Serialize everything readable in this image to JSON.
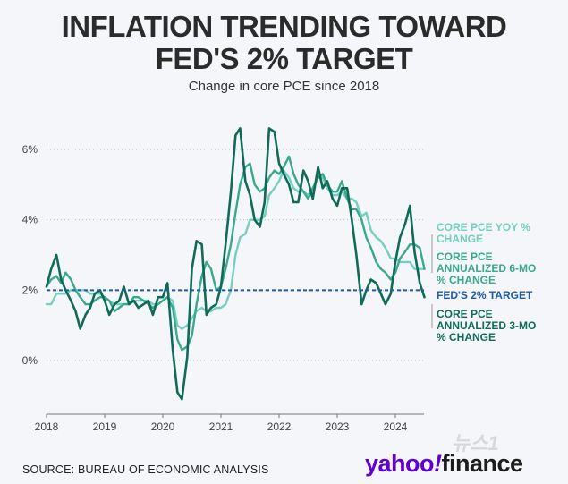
{
  "header": {
    "title_line1": "INFLATION TRENDING TOWARD",
    "title_line2": "FED'S 2% TARGET",
    "subtitle": "Change in core PCE since 2018"
  },
  "footer": {
    "source": "SOURCE: BUREAU OF ECONOMIC ANALYSIS",
    "logo_yahoo": "yahoo",
    "logo_bang": "!",
    "logo_finance": "finance",
    "watermark": "뉴스1"
  },
  "colors": {
    "yoy": "#74cfc0",
    "six_mo": "#3aa88a",
    "three_mo": "#0f6b58",
    "target": "#1f5aa6",
    "grid": "#b9bec4",
    "axis_text": "#444444"
  },
  "chart_data": {
    "type": "line",
    "title": "INFLATION TRENDING TOWARD FED'S 2% TARGET",
    "subtitle": "Change in core PCE since 2018",
    "xlabel": "",
    "ylabel": "",
    "xlim": [
      2018.0,
      2024.5
    ],
    "ylim": [
      -1.2,
      7.0
    ],
    "yticks": [
      0,
      2,
      4,
      6
    ],
    "ytick_labels": [
      "0%",
      "2%",
      "4%",
      "6%"
    ],
    "xticks": [
      2018,
      2019,
      2020,
      2021,
      2022,
      2023,
      2024
    ],
    "xtick_labels": [
      "2018",
      "2019",
      "2020",
      "2021",
      "2022",
      "2023",
      "2024"
    ],
    "grid": true,
    "target": {
      "label": "FED'S 2% TARGET",
      "value": 2
    },
    "series": [
      {
        "key": "yoy",
        "name": "CORE PCE YOY % CHANGE",
        "x": [
          2018.0,
          2018.08,
          2018.17,
          2018.25,
          2018.33,
          2018.42,
          2018.5,
          2018.58,
          2018.67,
          2018.75,
          2018.83,
          2018.92,
          2019.0,
          2019.08,
          2019.17,
          2019.25,
          2019.33,
          2019.42,
          2019.5,
          2019.58,
          2019.67,
          2019.75,
          2019.83,
          2019.92,
          2020.0,
          2020.08,
          2020.17,
          2020.25,
          2020.33,
          2020.42,
          2020.5,
          2020.58,
          2020.67,
          2020.75,
          2020.83,
          2020.92,
          2021.0,
          2021.08,
          2021.17,
          2021.25,
          2021.33,
          2021.42,
          2021.5,
          2021.58,
          2021.67,
          2021.75,
          2021.83,
          2021.92,
          2022.0,
          2022.08,
          2022.17,
          2022.25,
          2022.33,
          2022.42,
          2022.5,
          2022.58,
          2022.67,
          2022.75,
          2022.83,
          2022.92,
          2023.0,
          2023.08,
          2023.17,
          2023.25,
          2023.33,
          2023.42,
          2023.5,
          2023.58,
          2023.67,
          2023.75,
          2023.83,
          2023.92,
          2024.0,
          2024.08,
          2024.17,
          2024.25,
          2024.33,
          2024.42,
          2024.5
        ],
        "values": [
          1.6,
          1.6,
          1.9,
          1.9,
          1.9,
          2.0,
          2.0,
          2.0,
          2.0,
          1.9,
          1.9,
          1.9,
          1.8,
          1.7,
          1.6,
          1.6,
          1.6,
          1.6,
          1.7,
          1.7,
          1.7,
          1.7,
          1.6,
          1.6,
          1.7,
          1.8,
          1.7,
          1.0,
          0.9,
          1.0,
          1.2,
          1.4,
          1.5,
          1.4,
          1.4,
          1.5,
          1.5,
          1.6,
          2.0,
          3.0,
          3.5,
          3.6,
          4.0,
          4.0,
          4.0,
          4.1,
          4.7,
          4.9,
          5.1,
          5.4,
          5.2,
          4.9,
          4.8,
          4.8,
          4.7,
          4.9,
          5.2,
          5.2,
          4.9,
          4.7,
          4.7,
          4.8,
          4.6,
          4.6,
          4.5,
          4.1,
          4.2,
          3.7,
          3.5,
          3.4,
          3.2,
          2.9,
          2.9,
          2.8,
          2.8,
          2.8,
          2.6,
          2.6,
          2.6
        ]
      },
      {
        "key": "six_mo",
        "name": "CORE PCE ANNUALIZED 6-MO % CHANGE",
        "x": [
          2018.0,
          2018.08,
          2018.17,
          2018.25,
          2018.33,
          2018.42,
          2018.5,
          2018.58,
          2018.67,
          2018.75,
          2018.83,
          2018.92,
          2019.0,
          2019.08,
          2019.17,
          2019.25,
          2019.33,
          2019.42,
          2019.5,
          2019.58,
          2019.67,
          2019.75,
          2019.83,
          2019.92,
          2020.0,
          2020.08,
          2020.17,
          2020.25,
          2020.33,
          2020.42,
          2020.5,
          2020.58,
          2020.67,
          2020.75,
          2020.83,
          2020.92,
          2021.0,
          2021.08,
          2021.17,
          2021.25,
          2021.33,
          2021.42,
          2021.5,
          2021.58,
          2021.67,
          2021.75,
          2021.83,
          2021.92,
          2022.0,
          2022.08,
          2022.17,
          2022.25,
          2022.33,
          2022.42,
          2022.5,
          2022.58,
          2022.67,
          2022.75,
          2022.83,
          2022.92,
          2023.0,
          2023.08,
          2023.17,
          2023.25,
          2023.33,
          2023.42,
          2023.5,
          2023.58,
          2023.67,
          2023.75,
          2023.83,
          2023.92,
          2024.0,
          2024.08,
          2024.17,
          2024.25,
          2024.33,
          2024.42,
          2024.5
        ],
        "values": [
          2.1,
          2.3,
          2.4,
          2.2,
          2.5,
          2.3,
          2.0,
          1.8,
          1.6,
          1.6,
          1.7,
          1.8,
          1.8,
          1.7,
          1.4,
          1.5,
          1.6,
          1.6,
          1.8,
          1.8,
          1.7,
          1.6,
          1.5,
          1.6,
          1.7,
          1.8,
          1.5,
          0.6,
          0.3,
          0.4,
          0.7,
          1.6,
          2.4,
          2.8,
          2.6,
          2.0,
          2.1,
          2.6,
          3.3,
          4.2,
          5.0,
          5.5,
          5.6,
          5.0,
          4.8,
          4.9,
          5.2,
          5.4,
          5.3,
          5.5,
          5.8,
          5.3,
          5.0,
          4.8,
          4.6,
          4.9,
          5.2,
          5.3,
          5.0,
          4.8,
          4.8,
          5.1,
          4.6,
          4.3,
          4.3,
          4.0,
          3.5,
          3.2,
          2.8,
          2.6,
          2.5,
          2.3,
          2.5,
          2.9,
          3.1,
          3.3,
          3.3,
          3.2,
          2.6
        ]
      },
      {
        "key": "three_mo",
        "name": "CORE PCE ANNUALIZED 3-MO % CHANGE",
        "x": [
          2018.0,
          2018.08,
          2018.17,
          2018.25,
          2018.33,
          2018.42,
          2018.5,
          2018.58,
          2018.67,
          2018.75,
          2018.83,
          2018.92,
          2019.0,
          2019.08,
          2019.17,
          2019.25,
          2019.33,
          2019.42,
          2019.5,
          2019.58,
          2019.67,
          2019.75,
          2019.83,
          2019.92,
          2020.0,
          2020.08,
          2020.17,
          2020.25,
          2020.33,
          2020.42,
          2020.5,
          2020.58,
          2020.67,
          2020.75,
          2020.83,
          2020.92,
          2021.0,
          2021.08,
          2021.17,
          2021.25,
          2021.33,
          2021.42,
          2021.5,
          2021.58,
          2021.67,
          2021.75,
          2021.83,
          2021.92,
          2022.0,
          2022.08,
          2022.17,
          2022.25,
          2022.33,
          2022.42,
          2022.5,
          2022.58,
          2022.67,
          2022.75,
          2022.83,
          2022.92,
          2023.0,
          2023.08,
          2023.17,
          2023.25,
          2023.33,
          2023.42,
          2023.5,
          2023.58,
          2023.67,
          2023.75,
          2023.83,
          2023.92,
          2024.0,
          2024.08,
          2024.17,
          2024.25,
          2024.33,
          2024.42,
          2024.5
        ],
        "values": [
          2.1,
          2.6,
          3.0,
          2.3,
          2.0,
          1.7,
          1.4,
          0.9,
          1.3,
          1.5,
          1.9,
          2.0,
          1.7,
          1.3,
          1.6,
          1.7,
          2.1,
          1.6,
          1.7,
          1.5,
          1.6,
          1.7,
          1.3,
          1.8,
          1.8,
          2.2,
          0.3,
          -0.9,
          -1.1,
          0.1,
          2.6,
          3.4,
          3.3,
          1.3,
          1.5,
          1.6,
          2.1,
          3.3,
          4.8,
          6.4,
          6.6,
          5.1,
          4.7,
          4.0,
          3.8,
          4.5,
          6.6,
          6.5,
          5.6,
          5.3,
          5.0,
          4.5,
          4.5,
          5.4,
          5.1,
          4.6,
          5.5,
          4.9,
          5.1,
          4.6,
          4.4,
          4.9,
          4.9,
          4.0,
          3.0,
          1.6,
          2.0,
          2.3,
          2.2,
          1.9,
          1.6,
          1.9,
          2.8,
          3.5,
          3.9,
          4.4,
          3.1,
          2.2,
          1.8
        ]
      }
    ],
    "legend": [
      {
        "key": "yoy",
        "lines": [
          "CORE PCE YOY %",
          "CHANGE"
        ]
      },
      {
        "key": "six_mo",
        "lines": [
          "CORE PCE",
          "ANNUALIZED 6-MO",
          "% CHANGE"
        ]
      },
      {
        "key": "target",
        "lines": [
          "FED'S 2% TARGET"
        ]
      },
      {
        "key": "three_mo",
        "lines": [
          "CORE PCE",
          "ANNUALIZED 3-MO",
          "% CHANGE"
        ]
      }
    ],
    "legend_position": "right"
  }
}
